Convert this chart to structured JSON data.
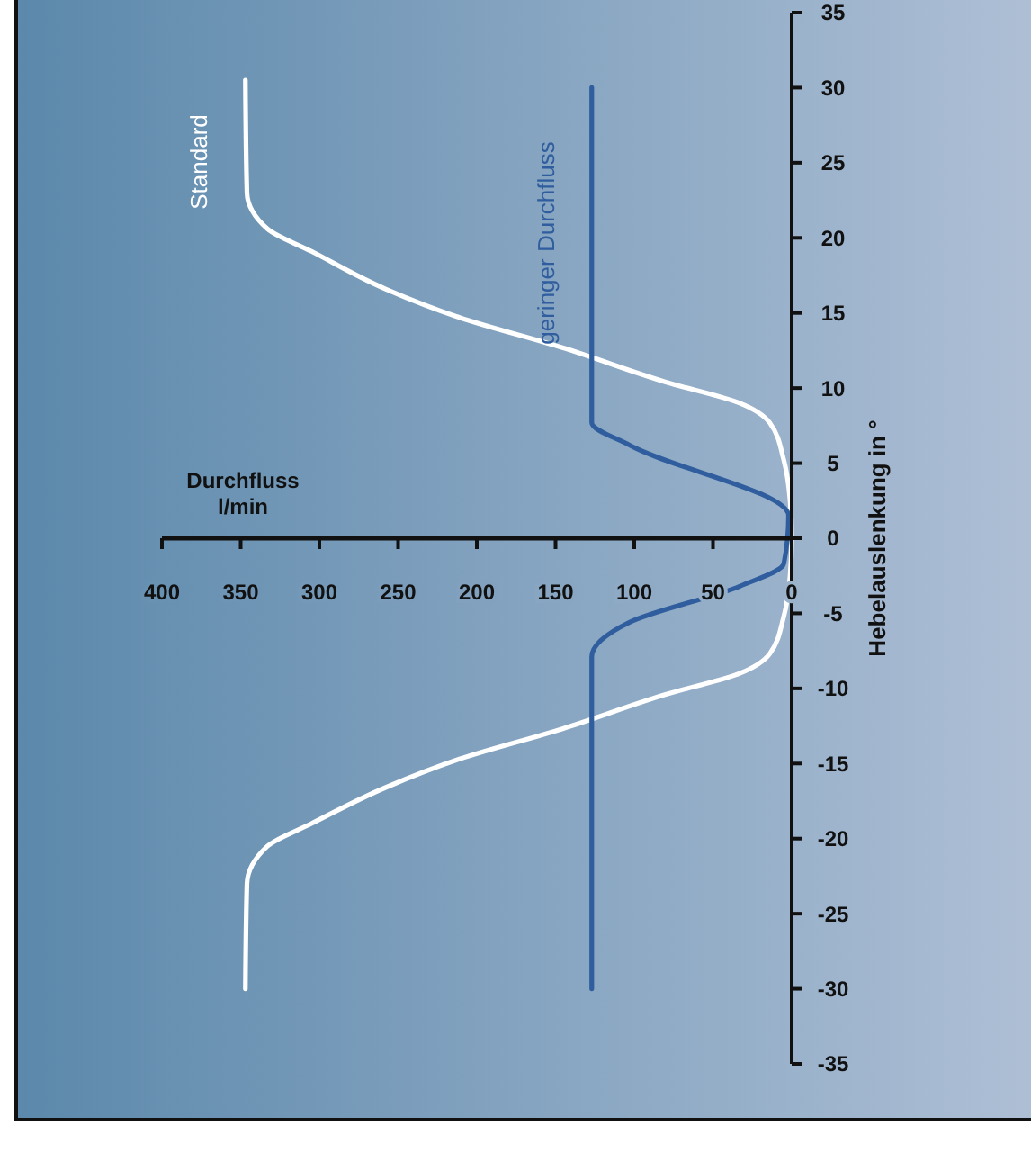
{
  "chart_data": {
    "type": "line",
    "xlabel": "Durchfluss\nl/min",
    "ylabel": "Hebelauslenkung in °",
    "xlim": [
      400,
      0
    ],
    "xticks": [
      400,
      350,
      300,
      250,
      200,
      150,
      100,
      50,
      0
    ],
    "ylim": [
      -35,
      35
    ],
    "yticks": [
      -35,
      -30,
      -25,
      -20,
      -15,
      -10,
      -5,
      0,
      5,
      10,
      15,
      20,
      25,
      30,
      35
    ],
    "grid": false,
    "legend": false,
    "series": [
      {
        "name": "Standard",
        "color": "#ffffff",
        "x": [
          347,
          346,
          333,
          305,
          258,
          211,
          146,
          80,
          33,
          14,
          5,
          1,
          0,
          1,
          5,
          14,
          33,
          80,
          146,
          211,
          258,
          305,
          333,
          346,
          347
        ],
        "values": [
          -30,
          -23,
          -20.5,
          -19,
          -16.6,
          -14.7,
          -12.7,
          -10.4,
          -9,
          -7.7,
          -5.2,
          -2.5,
          0,
          2.5,
          5.2,
          7.7,
          9,
          10.4,
          12.7,
          14.7,
          16.6,
          19.1,
          20.6,
          23,
          30.5
        ]
      },
      {
        "name": "geringer Durchfluss",
        "color": "#2f5d9e",
        "x": [
          127,
          127,
          103,
          33,
          5,
          2,
          103,
          127,
          127
        ],
        "values": [
          -30,
          -7.9,
          -5.6,
          -3.2,
          -1.7,
          1.5,
          6.2,
          7.7,
          30
        ]
      }
    ]
  }
}
